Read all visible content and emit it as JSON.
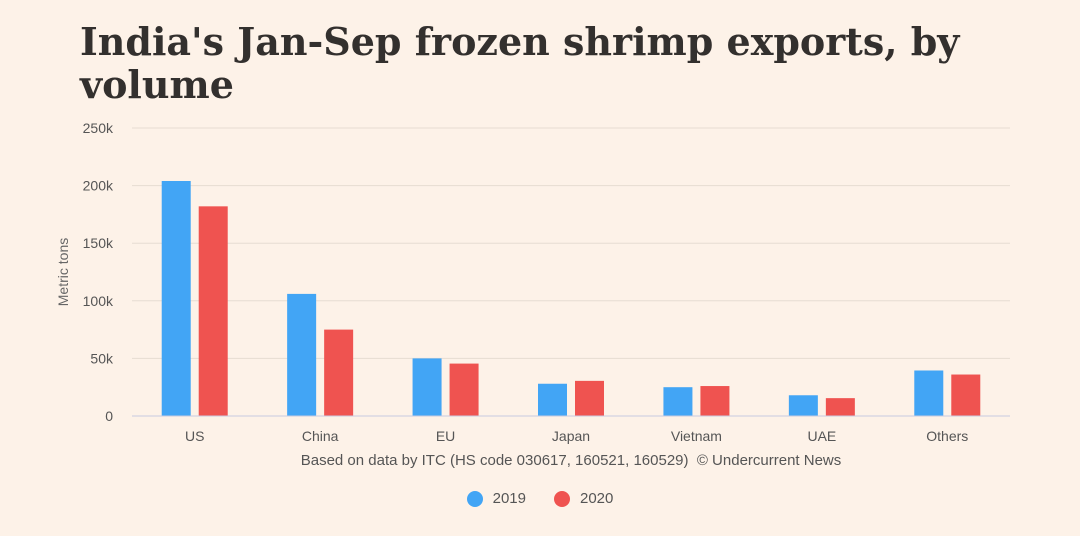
{
  "chart_data": {
    "type": "bar",
    "title": "India's Jan-Sep frozen shrimp exports, by volume",
    "ylabel": "Metric tons",
    "xlabel": "Based on data by ITC (HS code 030617, 160521, 160529)  © Undercurrent News",
    "categories": [
      "US",
      "China",
      "EU",
      "Japan",
      "Vietnam",
      "UAE",
      "Others"
    ],
    "ylim": [
      0,
      250000
    ],
    "yticks": [
      0,
      50000,
      100000,
      150000,
      200000,
      250000
    ],
    "ytick_labels": [
      "0",
      "50k",
      "100k",
      "150k",
      "200k",
      "250k"
    ],
    "grid": true,
    "legend_position": "bottom-center",
    "series": [
      {
        "name": "2019",
        "color": "#42a5f5",
        "values": [
          204000,
          106000,
          50000,
          28000,
          25000,
          18000,
          39500
        ]
      },
      {
        "name": "2020",
        "color": "#ef5350",
        "values": [
          182000,
          75000,
          45500,
          30500,
          26000,
          15500,
          36000
        ]
      }
    ]
  }
}
